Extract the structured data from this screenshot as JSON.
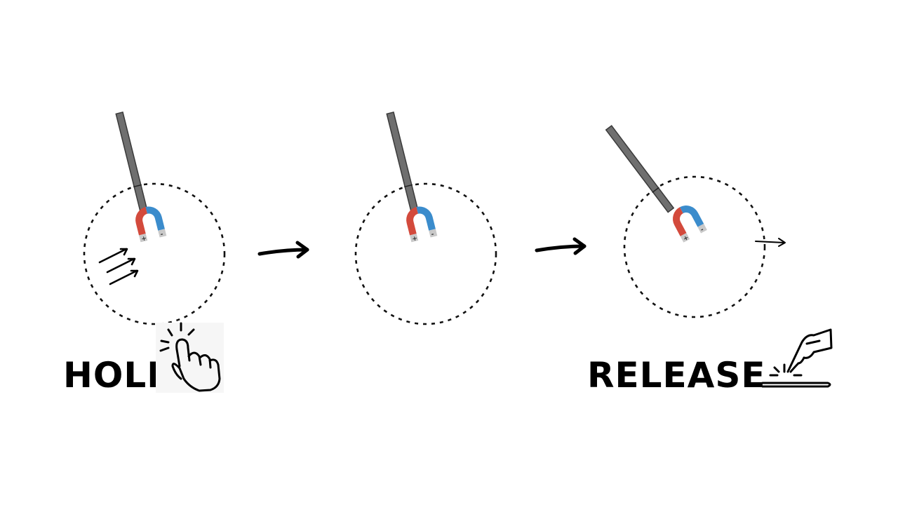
{
  "labels": {
    "hold": "HOLD",
    "release": "RELEASE"
  },
  "pole_marks": {
    "plus": "+",
    "minus": "-"
  },
  "colors": {
    "magnet_north": "#d34a3c",
    "magnet_south": "#3b8ccc",
    "magnet_tip": "#c9c9c9",
    "rod": "#6f6f6f",
    "ink": "#000000"
  },
  "icons": {
    "hold": "hand-tap-hold-icon",
    "release": "finger-release-tap-icon"
  }
}
